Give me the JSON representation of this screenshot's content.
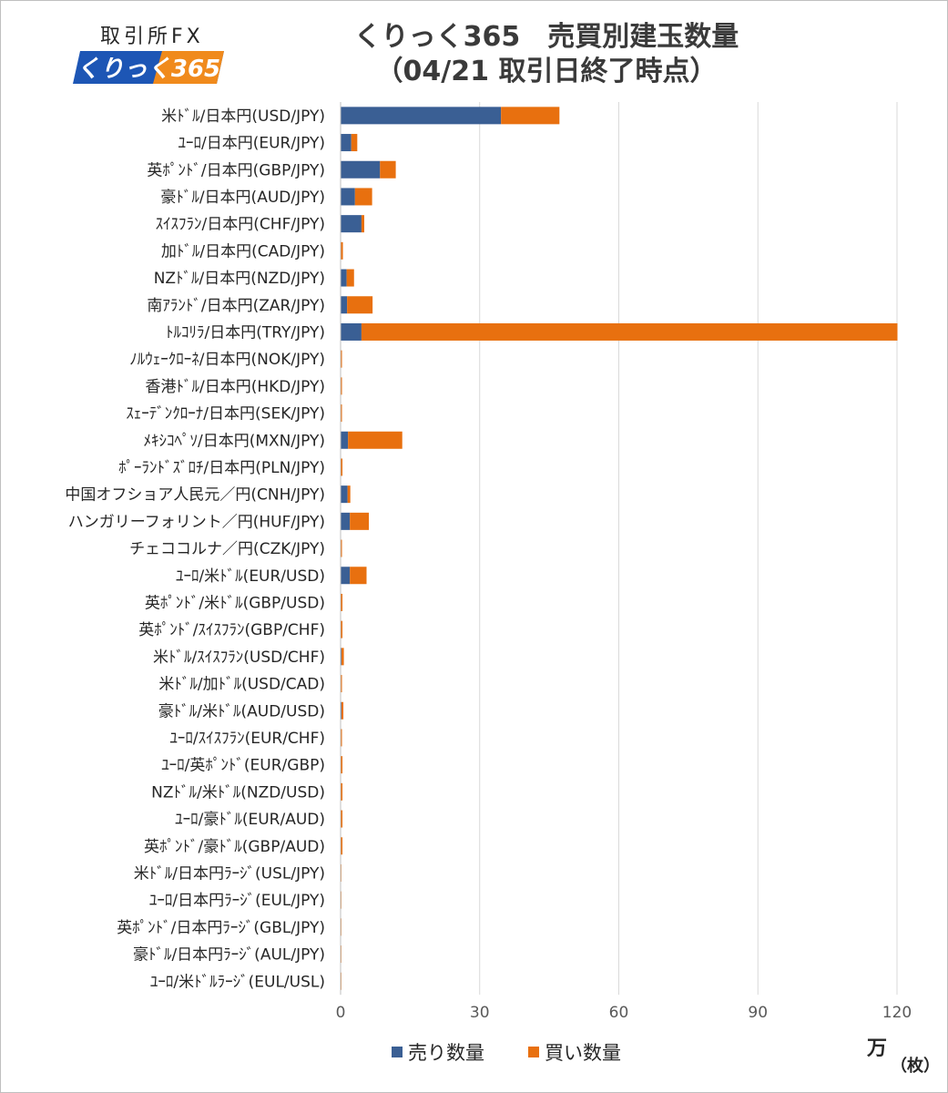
{
  "logo": {
    "top_text": "取引所FX",
    "badge_text": "くりっく365"
  },
  "title": {
    "line1": "くりっく365　売買別建玉数量",
    "line2": "（04/21 取引日終了時点）"
  },
  "units": {
    "man": "万",
    "mai": "（枚）"
  },
  "colors": {
    "sell": "#3a5f94",
    "buy": "#e8700f",
    "grid": "#d9d9d9",
    "axis_text": "#595959"
  },
  "chart_data": {
    "type": "bar",
    "orientation": "horizontal",
    "stacked": true,
    "xlim": [
      0,
      120
    ],
    "xticks": [
      0,
      30,
      60,
      90,
      120
    ],
    "grid": true,
    "legend_position": "bottom",
    "categories": [
      "米ﾄﾞﾙ/日本円(USD/JPY)",
      "ﾕｰﾛ/日本円(EUR/JPY)",
      "英ﾎﾟﾝﾄﾞ/日本円(GBP/JPY)",
      "豪ﾄﾞﾙ/日本円(AUD/JPY)",
      "ｽｲｽﾌﾗﾝ/日本円(CHF/JPY)",
      "加ﾄﾞﾙ/日本円(CAD/JPY)",
      "NZﾄﾞﾙ/日本円(NZD/JPY)",
      "南ｱﾗﾝﾄﾞ/日本円(ZAR/JPY)",
      "ﾄﾙｺﾘﾗ/日本円(TRY/JPY)",
      "ﾉﾙｳｪｰｸﾛｰﾈ/日本円(NOK/JPY)",
      "香港ﾄﾞﾙ/日本円(HKD/JPY)",
      "ｽｪｰﾃﾞﾝｸﾛｰﾅ/日本円(SEK/JPY)",
      "ﾒｷｼｺﾍﾟｿ/日本円(MXN/JPY)",
      "ﾎﾟｰﾗﾝﾄﾞｽﾞﾛﾁ/日本円(PLN/JPY)",
      "中国オフショア人民元／円(CNH/JPY)",
      "ハンガリーフォリント／円(HUF/JPY)",
      "チェココルナ／円(CZK/JPY)",
      "ﾕｰﾛ/米ﾄﾞﾙ(EUR/USD)",
      "英ﾎﾟﾝﾄﾞ/米ﾄﾞﾙ(GBP/USD)",
      "英ﾎﾟﾝﾄﾞ/ｽｲｽﾌﾗﾝ(GBP/CHF)",
      "米ﾄﾞﾙ/ｽｲｽﾌﾗﾝ(USD/CHF)",
      "米ﾄﾞﾙ/加ﾄﾞﾙ(USD/CAD)",
      "豪ﾄﾞﾙ/米ﾄﾞﾙ(AUD/USD)",
      "ﾕｰﾛ/ｽｲｽﾌﾗﾝ(EUR/CHF)",
      "ﾕｰﾛ/英ﾎﾟﾝﾄﾞ(EUR/GBP)",
      "NZﾄﾞﾙ/米ﾄﾞﾙ(NZD/USD)",
      "ﾕｰﾛ/豪ﾄﾞﾙ(EUR/AUD)",
      "英ﾎﾟﾝﾄﾞ/豪ﾄﾞﾙ(GBP/AUD)",
      "米ﾄﾞﾙ/日本円ﾗｰｼﾞ(USL/JPY)",
      "ﾕｰﾛ/日本円ﾗｰｼﾞ(EUL/JPY)",
      "英ﾎﾟﾝﾄﾞ/日本円ﾗｰｼﾞ(GBL/JPY)",
      "豪ﾄﾞﾙ/日本円ﾗｰｼﾞ(AUL/JPY)",
      "ﾕｰﾛ/米ﾄﾞﾙﾗｰｼﾞ(EUL/USL)"
    ],
    "series": [
      {
        "name": "売り数量",
        "color": "#3a5f94",
        "values": [
          34.6,
          2.3,
          8.5,
          3.1,
          4.5,
          0.1,
          1.3,
          1.4,
          4.5,
          0.1,
          0.1,
          0.1,
          1.6,
          0.1,
          1.5,
          2.0,
          0.1,
          2.0,
          0.1,
          0.1,
          0.2,
          0.1,
          0.2,
          0.1,
          0.1,
          0.1,
          0.1,
          0.1,
          0.05,
          0.05,
          0.05,
          0.05,
          0.05
        ]
      },
      {
        "name": "買い数量",
        "color": "#e8700f",
        "values": [
          12.6,
          1.3,
          3.4,
          3.7,
          0.6,
          0.4,
          1.6,
          5.5,
          115.6,
          0.2,
          0.2,
          0.2,
          11.7,
          0.3,
          0.6,
          4.1,
          0.2,
          3.6,
          0.3,
          0.3,
          0.5,
          0.2,
          0.4,
          0.2,
          0.3,
          0.3,
          0.3,
          0.3,
          0.1,
          0.1,
          0.1,
          0.1,
          0.1
        ]
      }
    ]
  }
}
